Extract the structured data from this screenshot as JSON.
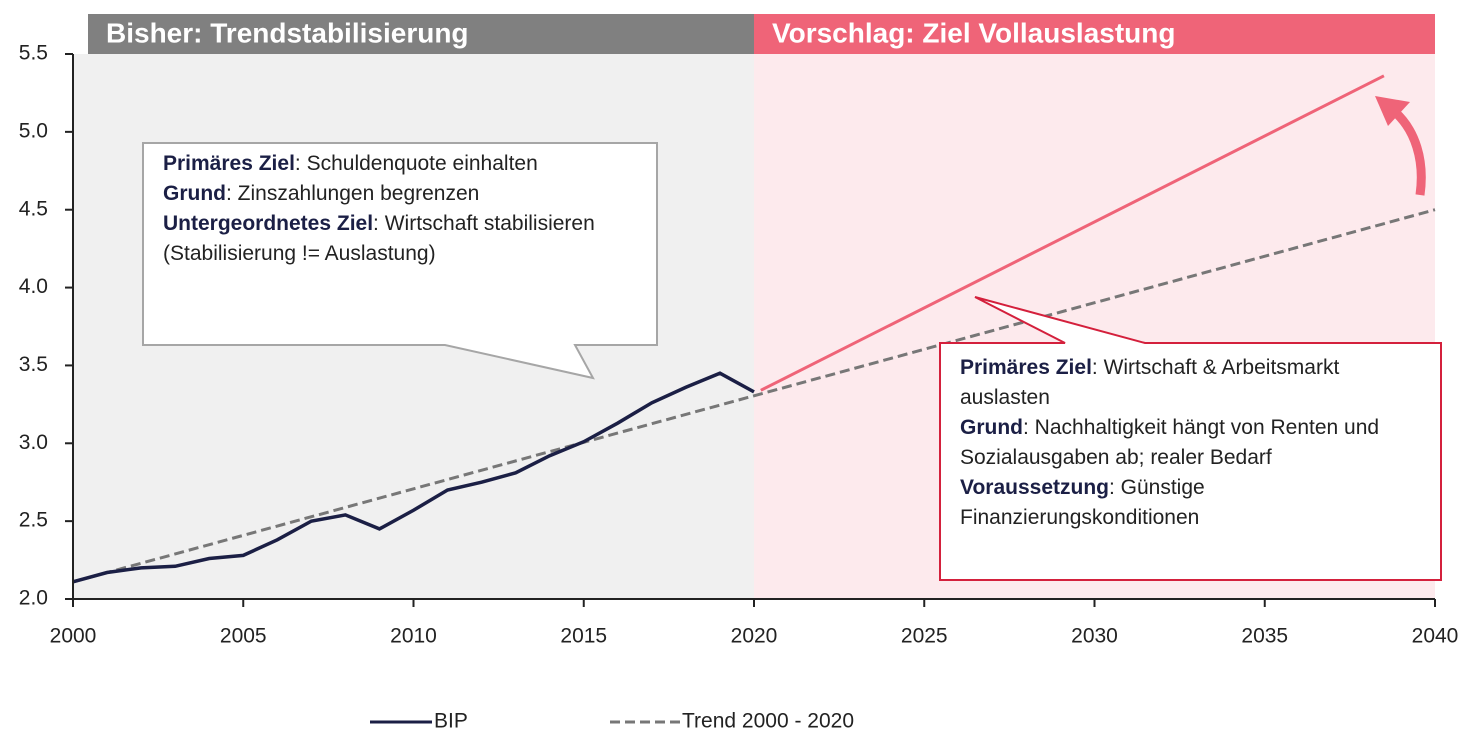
{
  "chart_data": {
    "type": "line",
    "regions": [
      {
        "label": "Bisher: Trendstabilisierung",
        "from": 2000,
        "to": 2020,
        "color": "#f0f0f0",
        "header_color": "#808080"
      },
      {
        "label": "Vorschlag: Ziel Vollauslastung",
        "from": 2020,
        "to": 2040,
        "color": "#fdeaed",
        "header_color": "#ef6478"
      }
    ],
    "series": [
      {
        "name": "BIP",
        "color": "#1b1f45",
        "dash": false,
        "x": [
          2000,
          2001,
          2002,
          2003,
          2004,
          2005,
          2006,
          2007,
          2008,
          2009,
          2010,
          2011,
          2012,
          2013,
          2014,
          2015,
          2016,
          2017,
          2018,
          2019,
          2020
        ],
        "values": [
          2.11,
          2.17,
          2.2,
          2.21,
          2.26,
          2.28,
          2.38,
          2.5,
          2.54,
          2.45,
          2.57,
          2.7,
          2.75,
          2.81,
          2.92,
          3.01,
          3.13,
          3.26,
          3.36,
          3.45,
          3.33
        ]
      },
      {
        "name": "Trend 2000 - 2020",
        "color": "#777777",
        "dash": true,
        "x": [
          2000,
          2040
        ],
        "values": [
          2.11,
          4.5
        ]
      }
    ],
    "target_line": {
      "color": "#ef6478",
      "x": [
        2020.2,
        2038.5
      ],
      "values": [
        3.34,
        5.36
      ]
    },
    "xlim": [
      2000,
      2040
    ],
    "xticks": [
      2000,
      2005,
      2010,
      2015,
      2020,
      2025,
      2030,
      2035,
      2040
    ],
    "ylim": [
      2,
      5.5
    ],
    "yticks": [
      {
        "value": 2,
        "label": "2.0"
      },
      2.5,
      {
        "value": 3,
        "label": "3.0"
      },
      3.5,
      {
        "value": 4,
        "label": "4.0"
      },
      4.5,
      {
        "value": 5,
        "label": "5.0"
      },
      5.5
    ],
    "annotations": [
      {
        "paragraphs": [
          {
            "bold": "Primäres Ziel",
            "text": ": Schuldenquote einhalten"
          },
          {
            "bold": "Grund",
            "text": ": Zinszahlungen begrenzen"
          },
          {
            "bold": "Untergeordnetes Ziel",
            "text": ": Wirtschaft stabilisieren (Stabilisierung != Auslastung)"
          }
        ]
      },
      {
        "paragraphs": [
          {
            "bold": "Primäres Ziel",
            "text": ": Wirtschaft & Arbeitsmarkt auslasten"
          },
          {
            "bold": "Grund",
            "text": ": Nachhaltigkeit hängt von Renten und Sozialausgaben ab; realer Bedarf"
          },
          {
            "bold": "Voraussetzung",
            "text": ": Günstige Finanzierungskonditionen"
          }
        ]
      }
    ]
  }
}
